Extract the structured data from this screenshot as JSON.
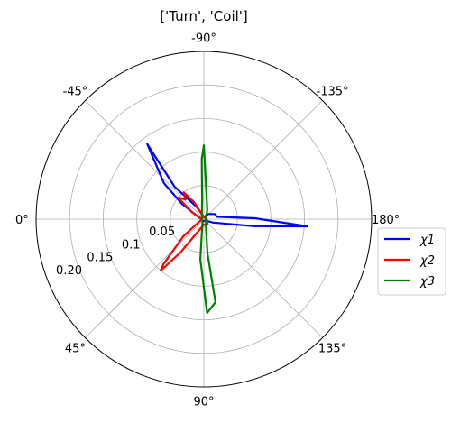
{
  "chart_data": {
    "type": "polar-line",
    "title": "['Turn', 'Coil']",
    "theta_direction": "clockwise",
    "theta_zero": "left",
    "angle_ticks": [
      "0°",
      "45°",
      "90°",
      "135°",
      "180°",
      "-135°",
      "-90°",
      "-45°"
    ],
    "angle_tick_values": [
      0,
      45,
      90,
      135,
      180,
      -135,
      -90,
      -45
    ],
    "radial_ticks": [
      "0.05",
      "0.1",
      "0.15",
      "0.20"
    ],
    "radial_tick_values": [
      0.05,
      0.1,
      0.15,
      0.2
    ],
    "r_range": [
      0,
      0.25
    ],
    "grid": true,
    "legend_position": "right",
    "series": [
      {
        "name": "χ1",
        "color": "#0000ff",
        "points": [
          {
            "theta": 0,
            "r": 0.003
          },
          {
            "theta": 45,
            "r": 0.003
          },
          {
            "theta": 90,
            "r": 0.003
          },
          {
            "theta": 135,
            "r": 0.003
          },
          {
            "theta": 160,
            "r": 0.015
          },
          {
            "theta": 172,
            "r": 0.075
          },
          {
            "theta": 176,
            "r": 0.155
          },
          {
            "theta": 181,
            "r": 0.076
          },
          {
            "theta": 190,
            "r": 0.02
          },
          {
            "theta": 205,
            "r": 0.018
          },
          {
            "theta": 230,
            "r": 0.01
          },
          {
            "theta": 270,
            "r": 0.003
          },
          {
            "theta": 300,
            "r": 0.02
          },
          {
            "theta": 312,
            "r": 0.065
          },
          {
            "theta": 307,
            "r": 0.14
          },
          {
            "theta": 318,
            "r": 0.08
          },
          {
            "theta": 325,
            "r": 0.04
          },
          {
            "theta": 340,
            "r": 0.008
          },
          {
            "theta": 360,
            "r": 0.003
          }
        ]
      },
      {
        "name": "χ2",
        "color": "#ff0000",
        "points": [
          {
            "theta": 0,
            "r": 0.003
          },
          {
            "theta": 40,
            "r": 0.04
          },
          {
            "theta": 48,
            "r": 0.09
          },
          {
            "theta": 50,
            "r": 0.1
          },
          {
            "theta": 55,
            "r": 0.06
          },
          {
            "theta": 65,
            "r": 0.02
          },
          {
            "theta": 90,
            "r": 0.008
          },
          {
            "theta": 120,
            "r": 0.01
          },
          {
            "theta": 150,
            "r": 0.006
          },
          {
            "theta": 200,
            "r": 0.004
          },
          {
            "theta": 270,
            "r": 0.003
          },
          {
            "theta": 300,
            "r": 0.03
          },
          {
            "theta": 307,
            "r": 0.05
          },
          {
            "theta": 313,
            "r": 0.04
          },
          {
            "theta": 320,
            "r": 0.05
          },
          {
            "theta": 330,
            "r": 0.02
          },
          {
            "theta": 360,
            "r": 0.003
          }
        ]
      },
      {
        "name": "χ3",
        "color": "#008000",
        "points": [
          {
            "theta": 0,
            "r": 0.003
          },
          {
            "theta": 60,
            "r": 0.004
          },
          {
            "theta": 85,
            "r": 0.06
          },
          {
            "theta": 92,
            "r": 0.14
          },
          {
            "theta": 98,
            "r": 0.125
          },
          {
            "theta": 96,
            "r": 0.05
          },
          {
            "theta": 105,
            "r": 0.012
          },
          {
            "theta": 180,
            "r": 0.003
          },
          {
            "theta": 250,
            "r": 0.015
          },
          {
            "theta": 270,
            "r": 0.11
          },
          {
            "theta": 272,
            "r": 0.09
          },
          {
            "theta": 275,
            "r": 0.03
          },
          {
            "theta": 300,
            "r": 0.006
          },
          {
            "theta": 360,
            "r": 0.003
          }
        ]
      }
    ]
  }
}
